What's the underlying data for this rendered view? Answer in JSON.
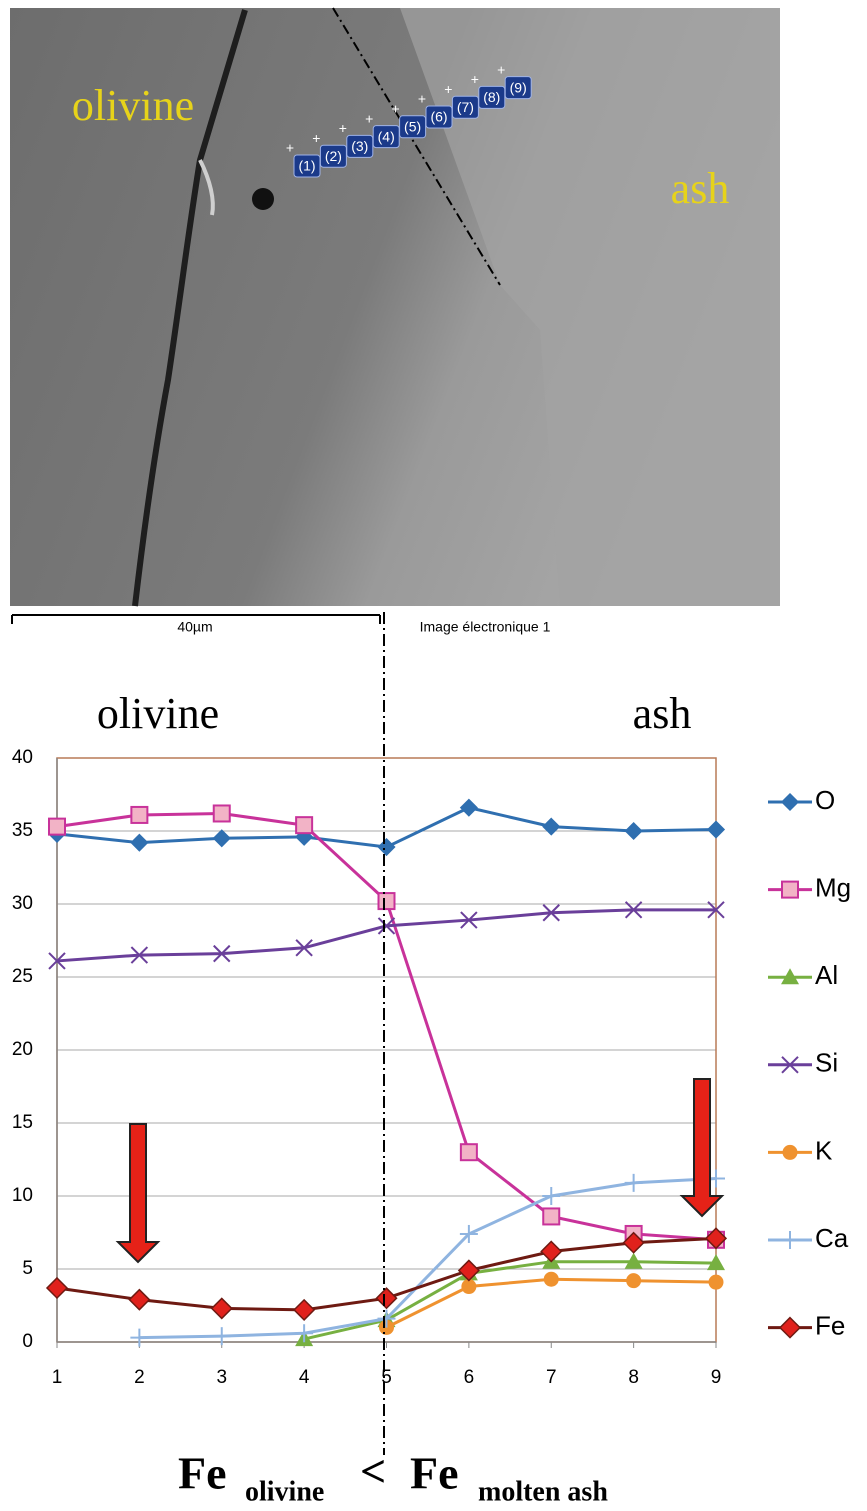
{
  "image": {
    "region_labels": [
      "olivine",
      "ash"
    ],
    "point_labels": [
      "(1)",
      "(2)",
      "(3)",
      "(4)",
      "(5)",
      "(6)",
      "(7)",
      "(8)",
      "(9)"
    ],
    "scale_bar": "40µm",
    "caption": "Image électronique 1"
  },
  "chart_data": {
    "type": "line",
    "region_labels": [
      "olivine",
      "ash"
    ],
    "x": [
      1,
      2,
      3,
      4,
      5,
      6,
      7,
      8,
      9
    ],
    "xlim": [
      1,
      9
    ],
    "xticks": [
      1,
      2,
      3,
      4,
      5,
      6,
      7,
      8,
      9
    ],
    "ylim": [
      0,
      40
    ],
    "yticks": [
      0,
      5,
      10,
      15,
      20,
      25,
      30,
      35,
      40
    ],
    "grid": true,
    "legend": "right",
    "series": [
      {
        "name": "O",
        "color": "#2f6fb0",
        "marker": "diamond",
        "marker_color": "#2f6fb0",
        "values": [
          34.8,
          34.2,
          34.5,
          34.6,
          33.9,
          36.6,
          35.3,
          35.0,
          35.1
        ]
      },
      {
        "name": "Mg",
        "color": "#c8329a",
        "marker": "square",
        "marker_color": "#f2b3c6",
        "values": [
          35.3,
          36.1,
          36.2,
          35.4,
          30.2,
          13.0,
          8.6,
          7.4,
          7.0
        ]
      },
      {
        "name": "Al",
        "color": "#77b041",
        "marker": "triangle",
        "marker_color": "#77b041",
        "values": [
          null,
          null,
          null,
          0.2,
          1.5,
          4.7,
          5.5,
          5.5,
          5.4
        ]
      },
      {
        "name": "Si",
        "color": "#6a3f9a",
        "marker": "cross",
        "marker_color": "#6a3f9a",
        "values": [
          26.1,
          26.5,
          26.6,
          27.0,
          28.5,
          28.9,
          29.4,
          29.6,
          29.6
        ]
      },
      {
        "name": "K",
        "color": "#ef922f",
        "marker": "circle",
        "marker_color": "#ef922f",
        "values": [
          null,
          null,
          null,
          null,
          1.0,
          3.8,
          4.3,
          4.2,
          4.1
        ]
      },
      {
        "name": "Ca",
        "color": "#8fb4e0",
        "marker": "plus",
        "marker_color": "#8fb4e0",
        "values": [
          null,
          0.3,
          0.4,
          0.6,
          1.6,
          7.4,
          10.0,
          10.9,
          11.2
        ]
      },
      {
        "name": "Fe",
        "color": "#6e1a12",
        "marker": "diamond",
        "marker_color": "#e0211c",
        "values": [
          3.7,
          2.9,
          2.3,
          2.2,
          3.0,
          4.9,
          6.2,
          6.8,
          7.1
        ]
      }
    ],
    "formula": {
      "base1": "Fe",
      "sub1": "olivine",
      "op": "<",
      "base2": "Fe",
      "sub2": "molten ash"
    }
  }
}
